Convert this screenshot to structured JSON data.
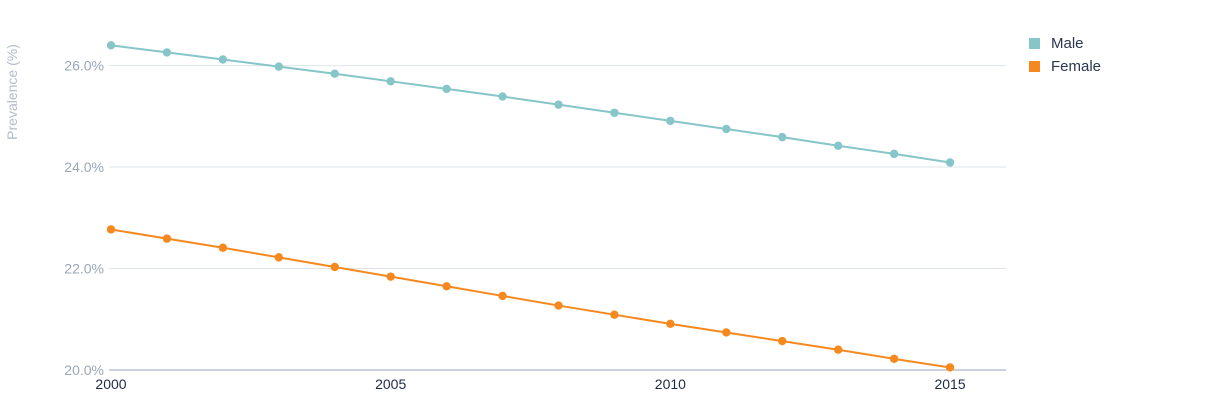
{
  "chart_data": {
    "type": "line",
    "ylabel": "Prevalence (%)",
    "xlabel": "",
    "x": [
      2000,
      2001,
      2002,
      2003,
      2004,
      2005,
      2006,
      2007,
      2008,
      2009,
      2010,
      2011,
      2012,
      2013,
      2014,
      2015
    ],
    "xlim": [
      2000,
      2016
    ],
    "x_ticks": [
      2000,
      2005,
      2010,
      2015
    ],
    "x_tick_labels": [
      "2000",
      "2005",
      "2010",
      "2015"
    ],
    "ylim": [
      20,
      26.8
    ],
    "y_ticks": [
      20,
      22,
      24,
      26
    ],
    "y_tick_labels": [
      "20.0%",
      "22.0%",
      "24.0%",
      "26.0%"
    ],
    "grid": true,
    "legend_position": "top-right",
    "series": [
      {
        "name": "Male",
        "color": "#86c5c8",
        "values": [
          26.4,
          26.26,
          26.12,
          25.98,
          25.84,
          25.69,
          25.54,
          25.39,
          25.23,
          25.07,
          24.91,
          24.75,
          24.59,
          24.42,
          24.26,
          24.09
        ]
      },
      {
        "name": "Female",
        "color": "#f5891f",
        "values": [
          22.77,
          22.59,
          22.41,
          22.22,
          22.03,
          21.84,
          21.65,
          21.46,
          21.27,
          21.09,
          20.91,
          20.74,
          20.57,
          20.4,
          20.22,
          20.05
        ]
      }
    ]
  }
}
